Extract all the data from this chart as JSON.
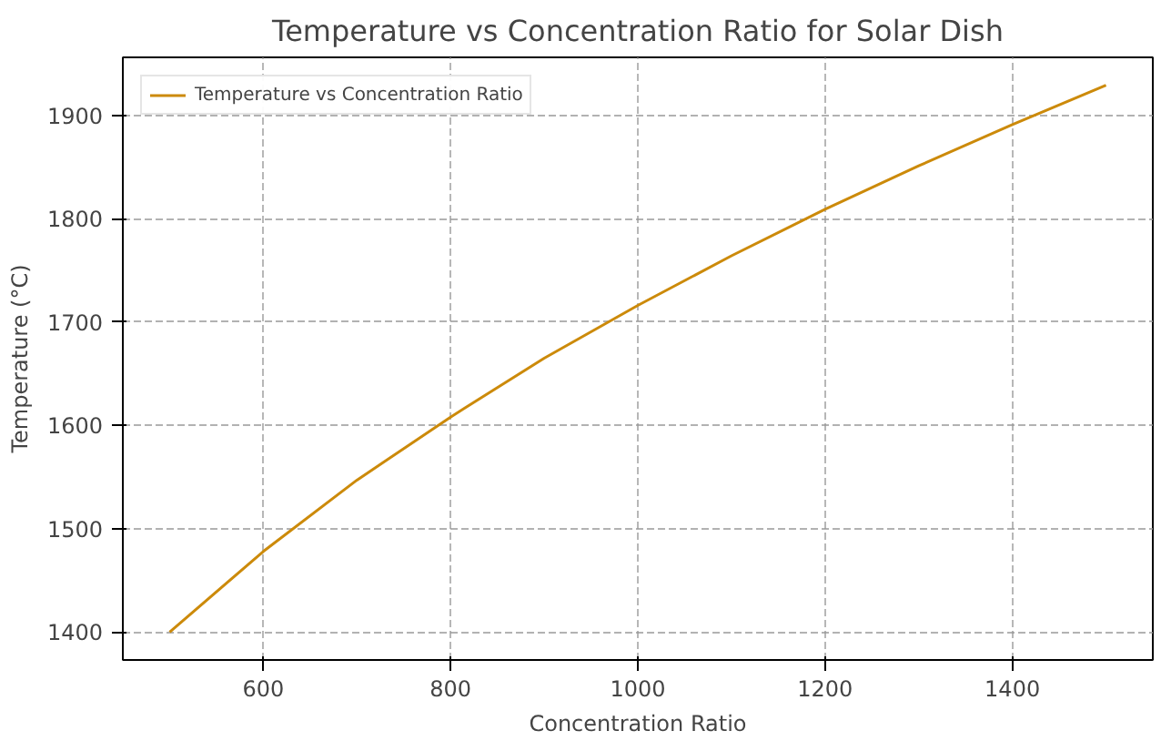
{
  "chart_data": {
    "type": "line",
    "title": "Temperature vs Concentration Ratio for Solar Dish",
    "xlabel": "Concentration Ratio",
    "ylabel": "Temperature (°C)",
    "x": [
      500,
      600,
      700,
      800,
      900,
      1000,
      1100,
      1200,
      1300,
      1400,
      1500
    ],
    "series": [
      {
        "name": "Temperature vs Concentration Ratio",
        "color": "#cc8a0a",
        "values": [
          1400,
          1478,
          1547,
          1608,
          1665,
          1716,
          1764,
          1809,
          1851,
          1891,
          1929
        ]
      }
    ],
    "xlim": [
      450,
      1550
    ],
    "ylim": [
      1373,
      1956
    ],
    "xticks": [
      600,
      800,
      1000,
      1200,
      1400
    ],
    "yticks": [
      1400,
      1500,
      1600,
      1700,
      1800,
      1900
    ],
    "grid": true,
    "legend": "top left",
    "line_style": "solid",
    "marker": "none"
  }
}
